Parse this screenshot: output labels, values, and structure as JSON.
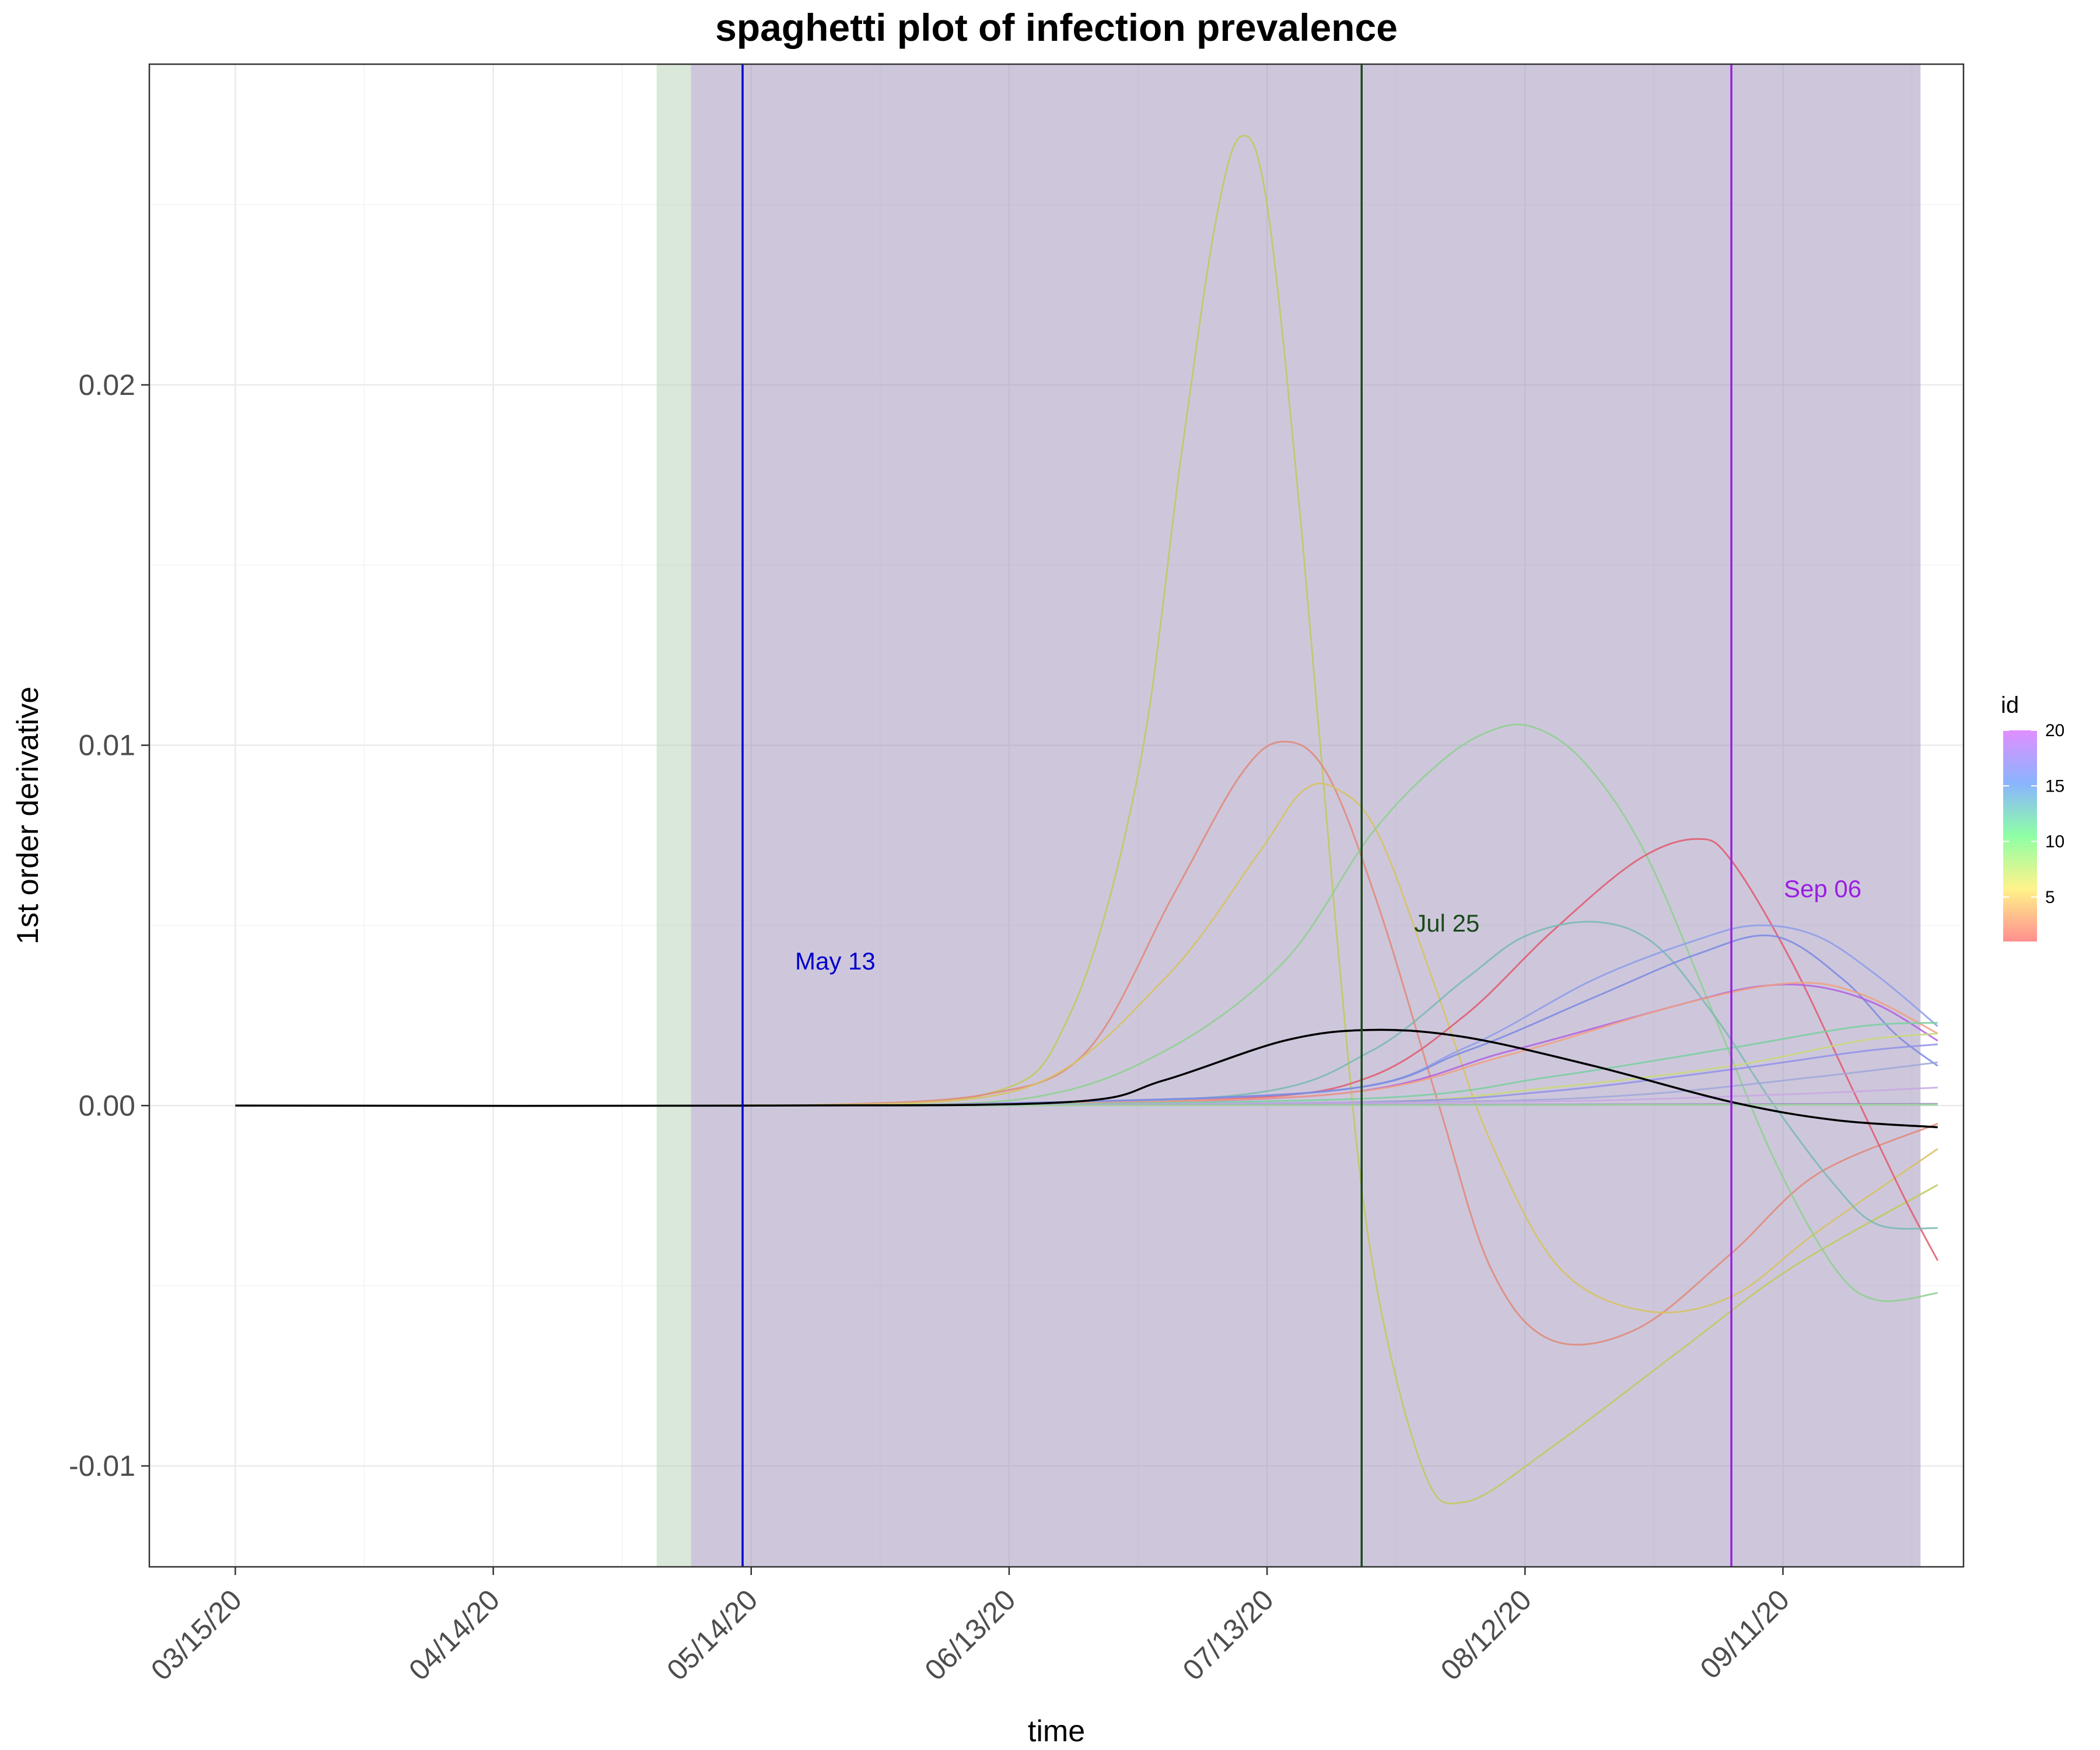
{
  "chart_data": {
    "type": "line",
    "title": "spaghetti plot of infection prevalence",
    "xlabel": "time",
    "ylabel": "1st order derivative",
    "x_tick_labels": [
      "03/15/20",
      "04/14/20",
      "05/14/20",
      "06/13/20",
      "07/13/20",
      "08/12/20",
      "09/11/20"
    ],
    "y_tick_labels": [
      "-0.01",
      "0.00",
      "0.01",
      "0.02"
    ],
    "xlim": [
      "03/05/20",
      "10/02/20"
    ],
    "ylim": [
      -0.0128,
      0.0289
    ],
    "grid": true,
    "shaded_regions": [
      {
        "from": "05/03/20",
        "to": "05/07/20",
        "color": "#b3d2b3"
      },
      {
        "from": "05/07/20",
        "to": "09/27/20",
        "color": "#9e8fba"
      }
    ],
    "vlines": [
      {
        "date": "05/13/20",
        "label": "May 13",
        "color": "#0000cc"
      },
      {
        "date": "07/24/20",
        "label": "Jul 25",
        "color": "#1a4a1a"
      },
      {
        "date": "09/05/20",
        "label": "Sep 06",
        "color": "#9a1ee0"
      }
    ],
    "legend": {
      "title": "id",
      "position": "right",
      "min": 1,
      "max": 20,
      "labels": [
        "20",
        "15",
        "10",
        "5"
      ]
    },
    "series": [
      {
        "color": "#000000",
        "points": [
          [
            "03/15/20",
            0
          ],
          [
            "05/15/20",
            0
          ],
          [
            "06/20/20",
            0.0001
          ],
          [
            "07/01/20",
            0.0007
          ],
          [
            "07/15/20",
            0.0018
          ],
          [
            "07/25/20",
            0.0021
          ],
          [
            "08/05/20",
            0.0019
          ],
          [
            "08/20/20",
            0.0011
          ],
          [
            "09/05/20",
            0.0001
          ],
          [
            "09/17/20",
            -0.0004
          ],
          [
            "09/29/20",
            -0.0006
          ]
        ]
      },
      {
        "color": "#c2c85f",
        "points": [
          [
            "05/10/20",
            0
          ],
          [
            "06/10/20",
            0.0003
          ],
          [
            "06/20/20",
            0.0025
          ],
          [
            "06/28/20",
            0.0092
          ],
          [
            "07/03/20",
            0.018
          ],
          [
            "07/07/20",
            0.0245
          ],
          [
            "07/10/20",
            0.0269
          ],
          [
            "07/13/20",
            0.025
          ],
          [
            "07/17/20",
            0.016
          ],
          [
            "07/21/20",
            0.005
          ],
          [
            "07/25/20",
            -0.004
          ],
          [
            "07/31/20",
            -0.01
          ],
          [
            "08/05/20",
            -0.011
          ],
          [
            "08/15/20",
            -0.0095
          ],
          [
            "08/30/20",
            -0.0068
          ],
          [
            "09/12/20",
            -0.0045
          ],
          [
            "09/29/20",
            -0.0022
          ]
        ]
      },
      {
        "color": "#e08878",
        "points": [
          [
            "05/20/20",
            0
          ],
          [
            "06/10/20",
            0.0003
          ],
          [
            "06/22/20",
            0.0015
          ],
          [
            "07/02/20",
            0.0058
          ],
          [
            "07/10/20",
            0.0092
          ],
          [
            "07/15/20",
            0.0101
          ],
          [
            "07/20/20",
            0.0092
          ],
          [
            "07/26/20",
            0.0055
          ],
          [
            "08/02/20",
            0
          ],
          [
            "08/08/20",
            -0.0045
          ],
          [
            "08/15/20",
            -0.0065
          ],
          [
            "08/25/20",
            -0.0062
          ],
          [
            "09/05/20",
            -0.0041
          ],
          [
            "09/15/20",
            -0.0019
          ],
          [
            "09/29/20",
            -0.0005
          ]
        ]
      },
      {
        "color": "#d6c264",
        "points": [
          [
            "05/20/20",
            0
          ],
          [
            "06/15/20",
            0.0005
          ],
          [
            "07/01/20",
            0.0035
          ],
          [
            "07/12/20",
            0.007
          ],
          [
            "07/17/20",
            0.0087
          ],
          [
            "07/21/20",
            0.0088
          ],
          [
            "07/26/20",
            0.0075
          ],
          [
            "08/02/20",
            0.003
          ],
          [
            "08/08/20",
            -0.001
          ],
          [
            "08/16/20",
            -0.0045
          ],
          [
            "08/26/20",
            -0.0057
          ],
          [
            "09/05/20",
            -0.0053
          ],
          [
            "09/15/20",
            -0.0035
          ],
          [
            "09/29/20",
            -0.0012
          ]
        ]
      },
      {
        "color": "#8fd08f",
        "points": [
          [
            "05/20/20",
            0
          ],
          [
            "06/15/20",
            0.0002
          ],
          [
            "07/01/20",
            0.0015
          ],
          [
            "07/15/20",
            0.004
          ],
          [
            "07/25/20",
            0.0075
          ],
          [
            "08/02/20",
            0.0095
          ],
          [
            "08/08/20",
            0.0104
          ],
          [
            "08/13/20",
            0.0105
          ],
          [
            "08/19/20",
            0.0095
          ],
          [
            "08/26/20",
            0.007
          ],
          [
            "09/03/20",
            0.0025
          ],
          [
            "09/10/20",
            -0.0015
          ],
          [
            "09/17/20",
            -0.0045
          ],
          [
            "09/22/20",
            -0.0054
          ],
          [
            "09/29/20",
            -0.0052
          ]
        ]
      },
      {
        "color": "#e05a6e",
        "points": [
          [
            "06/01/20",
            0
          ],
          [
            "07/10/20",
            0.0002
          ],
          [
            "07/25/20",
            0.0008
          ],
          [
            "08/05/20",
            0.0025
          ],
          [
            "08/15/20",
            0.0048
          ],
          [
            "08/25/20",
            0.0068
          ],
          [
            "09/01/20",
            0.0074
          ],
          [
            "09/05/20",
            0.0068
          ],
          [
            "09/12/20",
            0.004
          ],
          [
            "09/19/20",
            0.0005
          ],
          [
            "09/25/20",
            -0.0025
          ],
          [
            "09/29/20",
            -0.0043
          ]
        ]
      },
      {
        "color": "#7ab8b0",
        "points": [
          [
            "06/01/20",
            0
          ],
          [
            "07/10/20",
            0.0003
          ],
          [
            "07/25/20",
            0.0015
          ],
          [
            "08/05/20",
            0.0035
          ],
          [
            "08/12/20",
            0.0047
          ],
          [
            "08/20/20",
            0.0051
          ],
          [
            "08/27/20",
            0.0045
          ],
          [
            "09/03/20",
            0.0025
          ],
          [
            "09/10/20",
            0
          ],
          [
            "09/17/20",
            -0.0022
          ],
          [
            "09/22/20",
            -0.0033
          ],
          [
            "09/29/20",
            -0.0034
          ]
        ]
      },
      {
        "color": "#8c9de8",
        "points": [
          [
            "06/01/20",
            0
          ],
          [
            "07/20/20",
            0.0004
          ],
          [
            "08/05/20",
            0.0016
          ],
          [
            "08/20/20",
            0.0035
          ],
          [
            "09/01/20",
            0.0046
          ],
          [
            "09/08/20",
            0.005
          ],
          [
            "09/15/20",
            0.0047
          ],
          [
            "09/22/20",
            0.0036
          ],
          [
            "09/29/20",
            0.0022
          ]
        ]
      },
      {
        "color": "#7a8ae0",
        "points": [
          [
            "06/01/20",
            0
          ],
          [
            "07/20/20",
            0.0004
          ],
          [
            "08/05/20",
            0.0015
          ],
          [
            "08/20/20",
            0.003
          ],
          [
            "09/01/20",
            0.0042
          ],
          [
            "09/10/20",
            0.0047
          ],
          [
            "09/18/20",
            0.0035
          ],
          [
            "09/24/20",
            0.002
          ],
          [
            "09/29/20",
            0.0011
          ]
        ]
      },
      {
        "color": "#b060e0",
        "points": [
          [
            "06/01/20",
            0
          ],
          [
            "07/20/20",
            0.0003
          ],
          [
            "08/10/20",
            0.0015
          ],
          [
            "08/30/20",
            0.0028
          ],
          [
            "09/08/20",
            0.0033
          ],
          [
            "09/15/20",
            0.0033
          ],
          [
            "09/22/20",
            0.0028
          ],
          [
            "09/29/20",
            0.0018
          ]
        ]
      },
      {
        "color": "#f0a080",
        "points": [
          [
            "06/01/20",
            0
          ],
          [
            "07/20/20",
            0.0003
          ],
          [
            "08/10/20",
            0.0014
          ],
          [
            "08/30/20",
            0.0028
          ],
          [
            "09/12/20",
            0.0034
          ],
          [
            "09/20/20",
            0.0031
          ],
          [
            "09/29/20",
            0.002
          ]
        ]
      },
      {
        "color": "#7acfa0",
        "points": [
          [
            "06/01/20",
            0
          ],
          [
            "07/25/20",
            0.0002
          ],
          [
            "08/15/20",
            0.0008
          ],
          [
            "09/05/20",
            0.0016
          ],
          [
            "09/20/20",
            0.0022
          ],
          [
            "09/29/20",
            0.0023
          ]
        ]
      },
      {
        "color": "#c8d878",
        "points": [
          [
            "06/01/20",
            0
          ],
          [
            "07/25/20",
            0.0001
          ],
          [
            "08/15/20",
            0.0005
          ],
          [
            "09/05/20",
            0.0011
          ],
          [
            "09/20/20",
            0.0018
          ],
          [
            "09/29/20",
            0.002
          ]
        ]
      },
      {
        "color": "#9090e8",
        "points": [
          [
            "06/01/20",
            0
          ],
          [
            "07/25/20",
            0.0001
          ],
          [
            "08/15/20",
            0.0004
          ],
          [
            "09/05/20",
            0.001
          ],
          [
            "09/20/20",
            0.0015
          ],
          [
            "09/29/20",
            0.0017
          ]
        ]
      },
      {
        "color": "#a0a8d8",
        "points": [
          [
            "06/01/20",
            0
          ],
          [
            "08/01/20",
            0.0001
          ],
          [
            "08/25/20",
            0.0003
          ],
          [
            "09/15/20",
            0.0008
          ],
          [
            "09/29/20",
            0.0012
          ]
        ]
      },
      {
        "color": "#c8a8e0",
        "points": [
          [
            "06/01/20",
            0
          ],
          [
            "08/10/20",
            0.0001
          ],
          [
            "09/10/20",
            0.0003
          ],
          [
            "09/29/20",
            0.0005
          ]
        ]
      },
      {
        "color": "#9a8fb8",
        "points": [
          [
            "06/01/20",
            0
          ],
          [
            "09/29/20",
            5e-05
          ]
        ]
      },
      {
        "color": "#a0d8a0",
        "points": [
          [
            "06/01/20",
            0
          ],
          [
            "09/29/20",
            2e-05
          ]
        ]
      }
    ]
  }
}
